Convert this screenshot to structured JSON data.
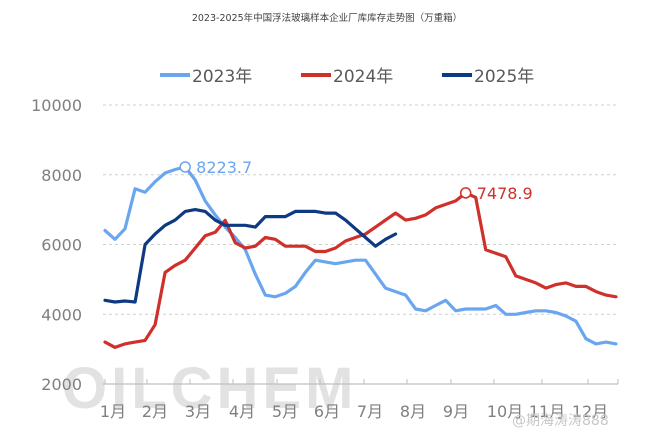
{
  "chart_data": {
    "type": "line",
    "title": "2023-2025年中国浮法玻璃样本企业厂库库存走势图（万重箱）",
    "xlabel": "",
    "ylabel": "",
    "ylim": [
      2000,
      10000
    ],
    "yticks": [
      10000,
      8000,
      6000,
      4000,
      2000
    ],
    "categories": [
      "1月",
      "2月",
      "3月",
      "4月",
      "5月",
      "6月",
      "7月",
      "8月",
      "9月",
      "10月",
      "11月",
      "12月"
    ],
    "grid": "horizontal dashed",
    "legend_position": "top",
    "x_unit": "week (approx. 52 points per year)",
    "series": [
      {
        "name": "2023年",
        "color": "#6aa6f0",
        "values": [
          6400,
          6150,
          6450,
          7600,
          7500,
          7800,
          8050,
          8150,
          8223.7,
          7850,
          7250,
          6850,
          6500,
          6200,
          5850,
          5150,
          4550,
          4500,
          4600,
          4800,
          5200,
          5550,
          5500,
          5450,
          5500,
          5550,
          5550,
          5150,
          4750,
          4650,
          4550,
          4150,
          4100,
          4250,
          4400,
          4100,
          4150,
          4150,
          4150,
          4250,
          4000,
          4000,
          4050,
          4100,
          4100,
          4050,
          3950,
          3800,
          3300,
          3150,
          3200,
          3150
        ],
        "annotation": {
          "label": "8223.7",
          "index": 8
        }
      },
      {
        "name": "2024年",
        "color": "#d0302a",
        "values": [
          3200,
          3050,
          3150,
          3200,
          3250,
          3700,
          5200,
          5400,
          5550,
          5900,
          6250,
          6350,
          6693.6,
          6050,
          5900,
          5950,
          6200,
          6150,
          5950,
          5950,
          5950,
          5800,
          5800,
          5900,
          6100,
          6200,
          6300,
          6500,
          6700,
          6900,
          6700,
          6750,
          6850,
          7050,
          7150,
          7250,
          7478.9,
          7350,
          5850,
          5750,
          5650,
          5100,
          5000,
          4900,
          4750,
          4850,
          4900,
          4800,
          4800,
          4650,
          4550,
          4500
        ],
        "annotation": {
          "label": "7478.9",
          "index": 36
        }
      },
      {
        "name": "2025年",
        "color": "#0e3a83",
        "values": [
          4400,
          4350,
          4380,
          4350,
          6000,
          6300,
          6550,
          6700,
          6950,
          7000,
          6950,
          6700,
          6550,
          6550,
          6550,
          6500,
          6800,
          6800,
          6800,
          6950,
          6950,
          6950,
          6900,
          6900,
          6700,
          6450,
          6200,
          5950,
          6150,
          6300
        ]
      }
    ]
  },
  "legend": {
    "items": [
      {
        "label": "2023年",
        "color": "#6aa6f0"
      },
      {
        "label": "2024年",
        "color": "#d0302a"
      },
      {
        "label": "2025年",
        "color": "#0e3a83"
      }
    ]
  },
  "watermarks": {
    "brand": "OILCHEM",
    "weibo": "@期海涛涛888"
  }
}
